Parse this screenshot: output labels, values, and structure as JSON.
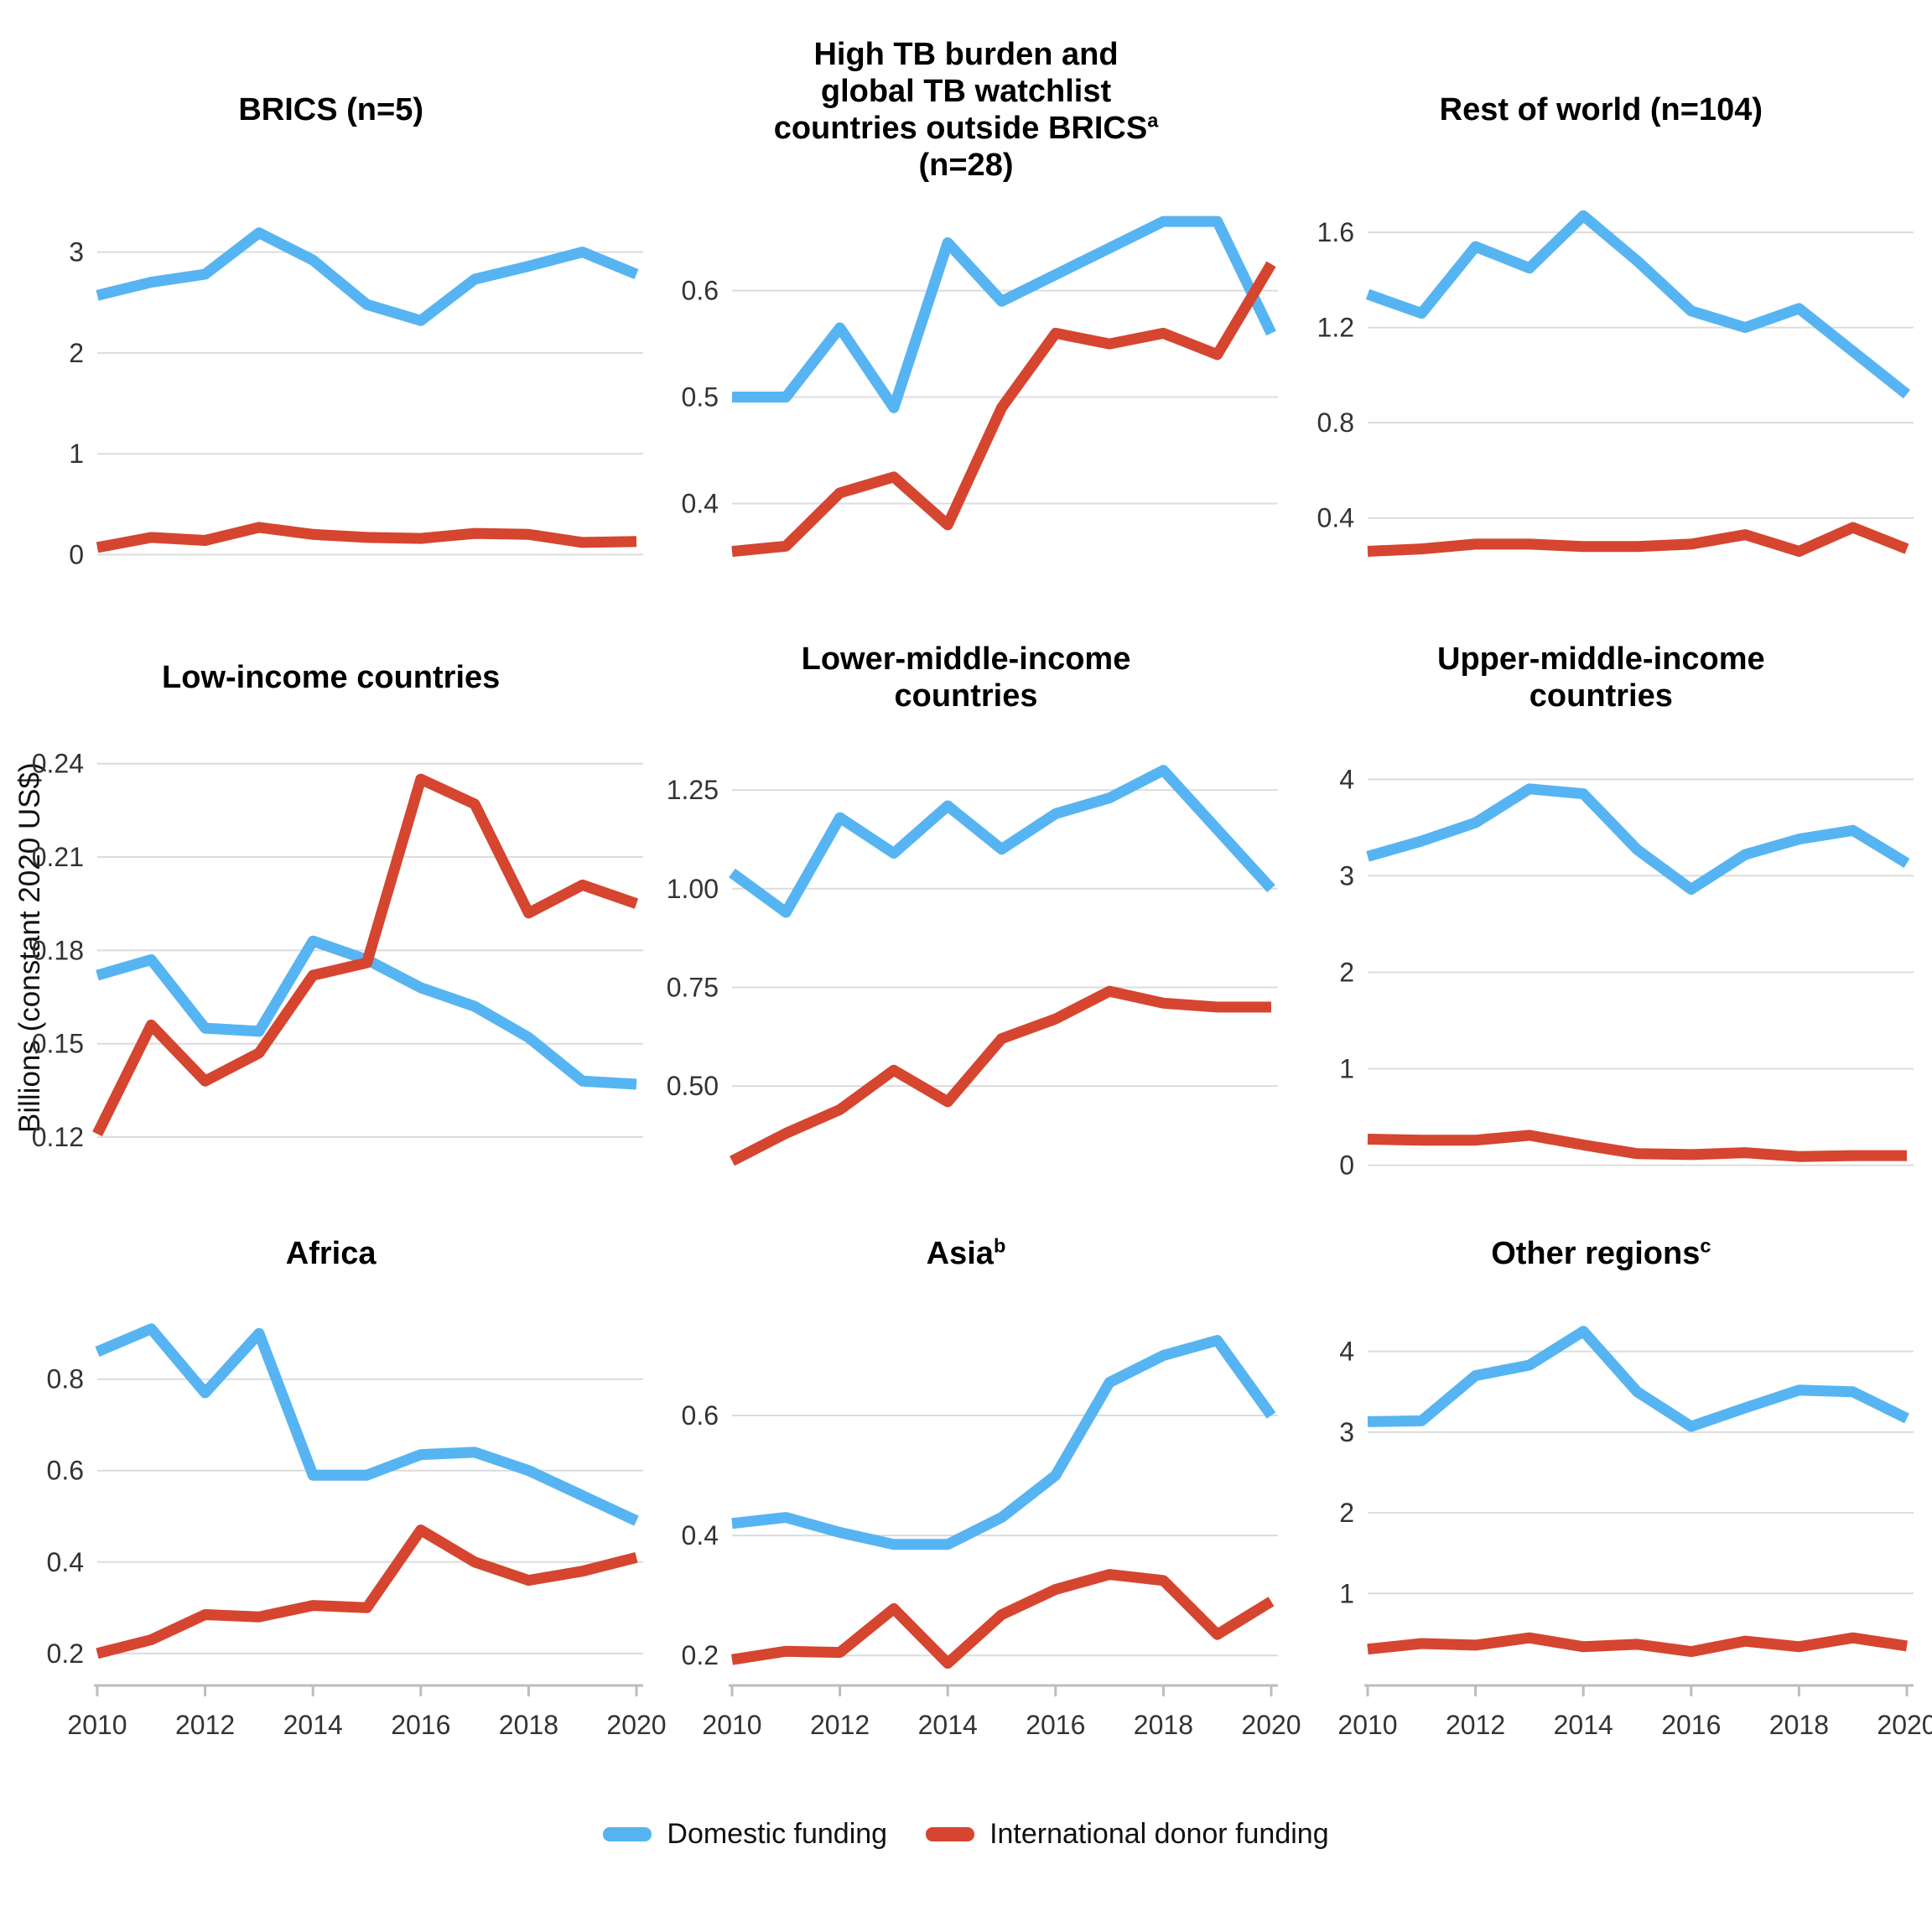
{
  "y_axis_label": "Billions (constant 2020 US$)",
  "colors": {
    "domestic": "#57b4f2",
    "donor": "#d6452f",
    "gridline": "#dcdcdc",
    "axis": "#bdbdbd",
    "tick_text": "#333333",
    "title_text": "#000000"
  },
  "legend": {
    "items": [
      {
        "label": "Domestic funding",
        "series": "domestic"
      },
      {
        "label": "International donor funding",
        "series": "donor"
      }
    ]
  },
  "years": [
    2010,
    2011,
    2012,
    2013,
    2014,
    2015,
    2016,
    2017,
    2018,
    2019,
    2020
  ],
  "x_tick_years": [
    2010,
    2012,
    2014,
    2016,
    2018,
    2020
  ],
  "chart_data": [
    {
      "type": "line",
      "title_lines": [
        "BRICS (n=5)"
      ],
      "y_domain": [
        -0.18,
        3.62
      ],
      "y_ticks": [
        {
          "value": 0,
          "label": "0"
        },
        {
          "value": 1,
          "label": "1"
        },
        {
          "value": 2,
          "label": "2"
        },
        {
          "value": 3,
          "label": "3"
        }
      ],
      "show_x_axis": false,
      "series": [
        {
          "name": "Domestic funding",
          "key": "domestic",
          "values": [
            2.57,
            2.7,
            2.78,
            3.19,
            2.92,
            2.48,
            2.32,
            2.73,
            2.86,
            3.0,
            2.78
          ]
        },
        {
          "name": "International donor funding",
          "key": "donor",
          "values": [
            0.07,
            0.17,
            0.14,
            0.27,
            0.2,
            0.17,
            0.16,
            0.21,
            0.2,
            0.12,
            0.13
          ]
        }
      ]
    },
    {
      "type": "line",
      "title_lines": [
        "High TB burden and",
        "global TB watchlist",
        "countries outside BRICS^a",
        "(n=28)"
      ],
      "y_domain": [
        0.335,
        0.695
      ],
      "y_ticks": [
        {
          "value": 0.4,
          "label": "0.4"
        },
        {
          "value": 0.5,
          "label": "0.5"
        },
        {
          "value": 0.6,
          "label": "0.6"
        }
      ],
      "show_x_axis": false,
      "series": [
        {
          "name": "Domestic funding",
          "key": "domestic",
          "values": [
            0.5,
            0.5,
            0.565,
            0.49,
            0.645,
            0.59,
            0.615,
            0.64,
            0.665,
            0.665,
            0.56
          ]
        },
        {
          "name": "International donor funding",
          "key": "donor",
          "values": [
            0.355,
            0.36,
            0.41,
            0.425,
            0.38,
            0.49,
            0.56,
            0.55,
            0.56,
            0.54,
            0.625
          ]
        }
      ]
    },
    {
      "type": "line",
      "title_lines": [
        "Rest of world (n=104)"
      ],
      "y_domain": [
        0.17,
        1.78
      ],
      "y_ticks": [
        {
          "value": 0.4,
          "label": "0.4"
        },
        {
          "value": 0.8,
          "label": "0.8"
        },
        {
          "value": 1.2,
          "label": "1.2"
        },
        {
          "value": 1.6,
          "label": "1.6"
        }
      ],
      "show_x_axis": false,
      "series": [
        {
          "name": "Domestic funding",
          "key": "domestic",
          "values": [
            1.34,
            1.26,
            1.54,
            1.45,
            1.67,
            1.48,
            1.27,
            1.2,
            1.28,
            1.1,
            0.92
          ]
        },
        {
          "name": "International donor funding",
          "key": "donor",
          "values": [
            0.26,
            0.27,
            0.29,
            0.29,
            0.28,
            0.28,
            0.29,
            0.33,
            0.26,
            0.36,
            0.27
          ]
        }
      ]
    },
    {
      "type": "line",
      "title_lines": [
        "Low-income countries"
      ],
      "y_domain": [
        0.106,
        0.248
      ],
      "y_ticks": [
        {
          "value": 0.12,
          "label": "0.12"
        },
        {
          "value": 0.15,
          "label": "0.15"
        },
        {
          "value": 0.18,
          "label": "0.18"
        },
        {
          "value": 0.21,
          "label": "0.21"
        },
        {
          "value": 0.24,
          "label": "0.24"
        }
      ],
      "show_x_axis": false,
      "series": [
        {
          "name": "Domestic funding",
          "key": "domestic",
          "values": [
            0.172,
            0.177,
            0.155,
            0.154,
            0.183,
            0.177,
            0.168,
            0.162,
            0.152,
            0.138,
            0.137
          ]
        },
        {
          "name": "International donor funding",
          "key": "donor",
          "values": [
            0.121,
            0.156,
            0.138,
            0.147,
            0.172,
            0.176,
            0.235,
            0.227,
            0.192,
            0.201,
            0.195
          ]
        }
      ]
    },
    {
      "type": "line",
      "title_lines": [
        "Lower-middle-income",
        "countries"
      ],
      "y_domain": [
        0.26,
        1.38
      ],
      "y_ticks": [
        {
          "value": 0.5,
          "label": "0.50"
        },
        {
          "value": 0.75,
          "label": "0.75"
        },
        {
          "value": 1.0,
          "label": "1.00"
        },
        {
          "value": 1.25,
          "label": "1.25"
        }
      ],
      "show_x_axis": false,
      "series": [
        {
          "name": "Domestic funding",
          "key": "domestic",
          "values": [
            1.04,
            0.94,
            1.18,
            1.09,
            1.21,
            1.1,
            1.19,
            1.23,
            1.3,
            1.15,
            1.0
          ]
        },
        {
          "name": "International donor funding",
          "key": "donor",
          "values": [
            0.31,
            0.38,
            0.44,
            0.54,
            0.46,
            0.62,
            0.67,
            0.74,
            0.71,
            0.7,
            0.7
          ]
        }
      ]
    },
    {
      "type": "line",
      "title_lines": [
        "Upper-middle-income",
        "countries"
      ],
      "y_domain": [
        -0.16,
        4.42
      ],
      "y_ticks": [
        {
          "value": 0,
          "label": "0"
        },
        {
          "value": 1,
          "label": "1"
        },
        {
          "value": 2,
          "label": "2"
        },
        {
          "value": 3,
          "label": "3"
        },
        {
          "value": 4,
          "label": "4"
        }
      ],
      "show_x_axis": false,
      "series": [
        {
          "name": "Domestic funding",
          "key": "domestic",
          "values": [
            3.2,
            3.36,
            3.55,
            3.9,
            3.85,
            3.27,
            2.86,
            3.22,
            3.38,
            3.47,
            3.13
          ]
        },
        {
          "name": "International donor funding",
          "key": "donor",
          "values": [
            0.27,
            0.26,
            0.26,
            0.31,
            0.21,
            0.12,
            0.11,
            0.13,
            0.09,
            0.1,
            0.1
          ]
        }
      ]
    },
    {
      "type": "line",
      "title_lines": [
        "Africa"
      ],
      "y_domain": [
        0.13,
        0.97
      ],
      "y_ticks": [
        {
          "value": 0.2,
          "label": "0.2"
        },
        {
          "value": 0.4,
          "label": "0.4"
        },
        {
          "value": 0.6,
          "label": "0.6"
        },
        {
          "value": 0.8,
          "label": "0.8"
        }
      ],
      "show_x_axis": true,
      "series": [
        {
          "name": "Domestic funding",
          "key": "domestic",
          "values": [
            0.86,
            0.91,
            0.77,
            0.9,
            0.59,
            0.59,
            0.635,
            0.64,
            0.6,
            0.545,
            0.49
          ]
        },
        {
          "name": "International donor funding",
          "key": "donor",
          "values": [
            0.2,
            0.23,
            0.285,
            0.28,
            0.305,
            0.3,
            0.47,
            0.4,
            0.36,
            0.38,
            0.41
          ]
        }
      ]
    },
    {
      "type": "line",
      "title_lines": [
        "Asia^b"
      ],
      "y_domain": [
        0.15,
        0.79
      ],
      "y_ticks": [
        {
          "value": 0.2,
          "label": "0.2"
        },
        {
          "value": 0.4,
          "label": "0.4"
        },
        {
          "value": 0.6,
          "label": "0.6"
        }
      ],
      "show_x_axis": true,
      "series": [
        {
          "name": "Domestic funding",
          "key": "domestic",
          "values": [
            0.42,
            0.43,
            0.405,
            0.385,
            0.385,
            0.43,
            0.5,
            0.655,
            0.7,
            0.725,
            0.6
          ]
        },
        {
          "name": "International donor funding",
          "key": "donor",
          "values": [
            0.193,
            0.207,
            0.205,
            0.278,
            0.187,
            0.268,
            0.31,
            0.335,
            0.325,
            0.235,
            0.29
          ]
        }
      ]
    },
    {
      "type": "line",
      "title_lines": [
        "Other regions^c"
      ],
      "y_domain": [
        -0.14,
        4.62
      ],
      "y_ticks": [
        {
          "value": 1,
          "label": "1"
        },
        {
          "value": 2,
          "label": "2"
        },
        {
          "value": 3,
          "label": "3"
        },
        {
          "value": 4,
          "label": "4"
        }
      ],
      "show_x_axis": true,
      "series": [
        {
          "name": "Domestic funding",
          "key": "domestic",
          "values": [
            3.13,
            3.14,
            3.7,
            3.83,
            4.25,
            3.5,
            3.07,
            3.3,
            3.52,
            3.5,
            3.17
          ]
        },
        {
          "name": "International donor funding",
          "key": "donor",
          "values": [
            0.31,
            0.38,
            0.36,
            0.45,
            0.34,
            0.37,
            0.28,
            0.41,
            0.34,
            0.45,
            0.35
          ]
        }
      ]
    }
  ]
}
